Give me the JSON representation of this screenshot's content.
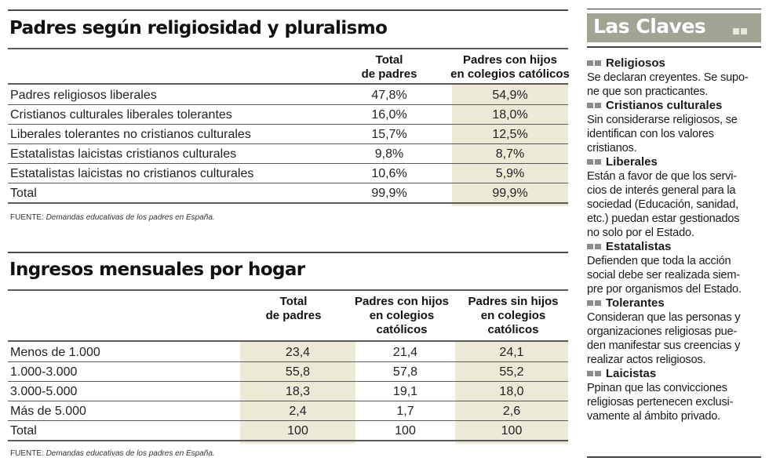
{
  "table1": {
    "title": "Padres según religiosidad y pluralismo",
    "columns": [
      {
        "label_line1": "Total",
        "label_line2": "de padres"
      },
      {
        "label_line1": "Padres con hijos",
        "label_line2": "en colegios católicos"
      }
    ],
    "rows": [
      {
        "label": "Padres religiosos liberales",
        "values": [
          "47,8%",
          "54,9%"
        ]
      },
      {
        "label": "Cristianos culturales liberales tolerantes",
        "values": [
          "16,0%",
          "18,0%"
        ]
      },
      {
        "label": "Liberales tolerantes no cristianos culturales",
        "values": [
          "15,7%",
          "12,5%"
        ]
      },
      {
        "label": "Estatalistas laicistas cristianos culturales",
        "values": [
          "9,8%",
          "8,7%"
        ]
      },
      {
        "label": "Estatalistas laicistas no cristianos culturales",
        "values": [
          "10,6%",
          "5,9%"
        ]
      },
      {
        "label": "Total",
        "values": [
          "99,9%",
          "99,9%"
        ]
      }
    ],
    "source_prefix": "FUENTE:",
    "source_text": "Demandas educativas de los padres en España."
  },
  "table2": {
    "title": "Ingresos mensuales por hogar",
    "columns": [
      {
        "lines": [
          "Total",
          "de padres"
        ]
      },
      {
        "lines": [
          "Padres con hijos",
          "en colegios",
          "católicos"
        ]
      },
      {
        "lines": [
          "Padres sin hijos",
          "en colegios",
          "católicos"
        ]
      }
    ],
    "rows": [
      {
        "label": "Menos de 1.000",
        "values": [
          "23,4",
          "21,4",
          "24,1"
        ]
      },
      {
        "label": "1.000-3.000",
        "values": [
          "55,8",
          "57,8",
          "55,2"
        ]
      },
      {
        "label": "3.000-5.000",
        "values": [
          "18,3",
          "19,1",
          "18,0"
        ]
      },
      {
        "label": "Más de 5.000",
        "values": [
          "2,4",
          "1,7",
          "2,6"
        ]
      },
      {
        "label": "Total",
        "values": [
          "100",
          "100",
          "100"
        ]
      }
    ],
    "source_prefix": "FUENTE:",
    "source_text": "Demandas educativas de los padres en España."
  },
  "claves": {
    "title": "Las Claves",
    "entries": [
      {
        "term": "Religiosos",
        "lines": [
          "Se declaran creyentes. Se supo-",
          "ne que son practicantes."
        ]
      },
      {
        "term": "Cristianos culturales",
        "lines": [
          "Sin considerarse religiosos, se",
          "identifican con los valores",
          "cristianos."
        ]
      },
      {
        "term": "Liberales",
        "lines": [
          "Están a favor de que los servi-",
          "cios de interés general para la",
          "sociedad (Educación, sanidad,",
          "etc.) puedan estar gestionados",
          "no solo por el Estado."
        ]
      },
      {
        "term": "Estatalistas",
        "lines": [
          "Defienden que toda la acción",
          "social debe ser realizada siem-",
          "pre por organismos del Estado."
        ]
      },
      {
        "term": "Tolerantes",
        "lines": [
          "Consideran que las personas y",
          "organizaciones religiosas pue-",
          "den manifestar sus creencias y",
          "realizar actos religiosos."
        ]
      },
      {
        "term": "Laicistas",
        "lines": [
          "Ppinan que las convicciones",
          "religiosas pertenecen exclusi-",
          "vamente al ámbito privado."
        ]
      }
    ]
  },
  "colors": {
    "shade": "#ecead7",
    "claves_box": "#a3a394",
    "rule": "#5a5a5a"
  }
}
